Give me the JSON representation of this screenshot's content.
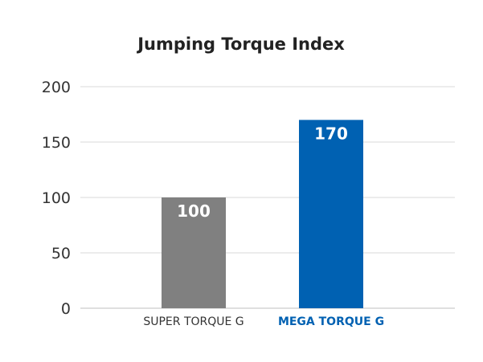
{
  "chart_data": {
    "type": "bar",
    "title": "Jumping Torque Index",
    "categories": [
      "SUPER TORQUE G",
      "MEGA TORQUE G"
    ],
    "values": [
      100,
      170
    ],
    "data_labels": [
      "100",
      "170"
    ],
    "bar_colors": [
      "#808080",
      "#0061b2"
    ],
    "category_label_colors": [
      "#333333",
      "#0061b2"
    ],
    "category_label_bold": [
      false,
      true
    ],
    "y_ticks": [
      0,
      50,
      100,
      150,
      200
    ],
    "y_tick_labels": [
      "0",
      "50",
      "100",
      "150",
      "200"
    ],
    "ylim": [
      0,
      200
    ],
    "grid": true,
    "legend": "none",
    "xlabel": "",
    "ylabel": ""
  }
}
